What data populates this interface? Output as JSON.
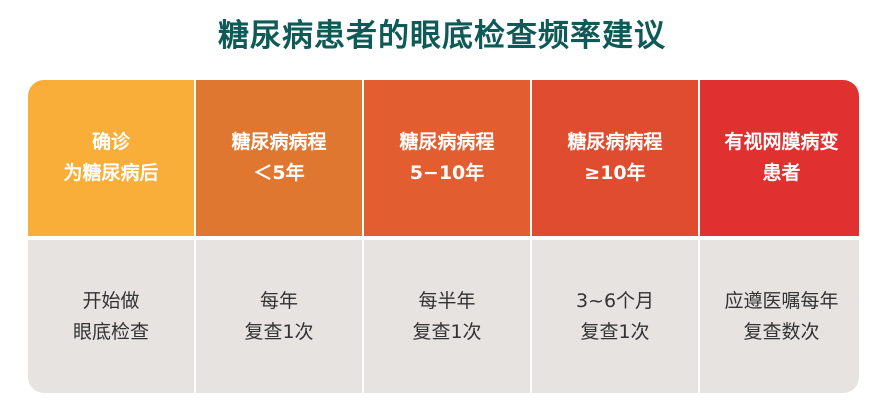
{
  "title": "糖尿病患者的眼底检查频率建议",
  "columns": [
    {
      "header": "确诊\n为糖尿病后",
      "body": "开始做\n眼底检查",
      "color": "#f8ae38"
    },
    {
      "header": "糖尿病病程\n＜5年",
      "body": "每年\n复查1次",
      "color": "#e07730"
    },
    {
      "header": "糖尿病病程\n5−10年",
      "body": "每半年\n复查1次",
      "color": "#e25d30"
    },
    {
      "header": "糖尿病病程\n≥10年",
      "body": "3~6个月\n复查1次",
      "color": "#e04c30"
    },
    {
      "header": "有视网膜病变\n患者",
      "body": "应遵医嘱每年\n复查数次",
      "color": "#e03030"
    }
  ]
}
